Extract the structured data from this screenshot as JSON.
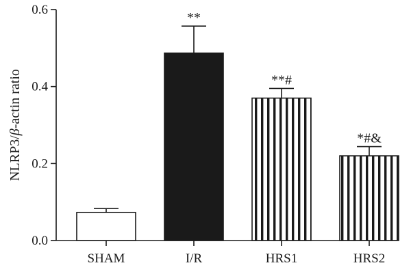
{
  "chart_data": {
    "type": "bar",
    "categories": [
      "SHAM",
      "I/R",
      "HRS1",
      "HRS2"
    ],
    "values": [
      0.073,
      0.487,
      0.37,
      0.22
    ],
    "errors": [
      0.01,
      0.07,
      0.025,
      0.024
    ],
    "annotations": [
      "",
      "**",
      "**#",
      "*#&"
    ],
    "fills": [
      "white",
      "black",
      "stripes",
      "stripes"
    ],
    "ylabel_parts": [
      "NLRP3/",
      "β",
      "-actin ratio"
    ],
    "ylim": [
      0,
      0.6
    ],
    "yticks": [
      0.0,
      0.2,
      0.4,
      0.6
    ],
    "ytick_labels": [
      "0.0",
      "0.2",
      "0.4",
      "0.6"
    ],
    "grid": false,
    "colors": {
      "ink": "#1a1a1a",
      "background": "#ffffff"
    }
  }
}
